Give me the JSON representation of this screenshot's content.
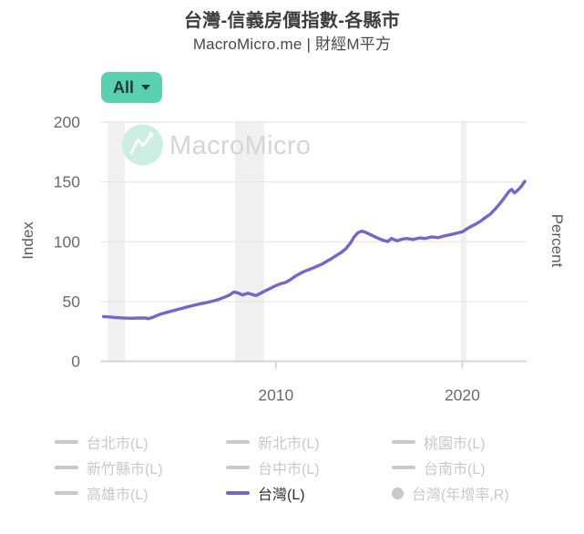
{
  "header": {
    "title": "台灣-信義房價指數-各縣市",
    "subtitle": "MacroMicro.me | 財經M平方"
  },
  "controls": {
    "range_button": {
      "label": "All"
    }
  },
  "watermark": {
    "text": "MacroMicro"
  },
  "chart_data": {
    "type": "line",
    "title": "台灣-信義房價指數-各縣市",
    "ylabel_left": "Index",
    "ylabel_right": "Percent",
    "y_ticks": [
      0,
      50,
      100,
      150,
      200
    ],
    "x_ticks": [
      2010,
      2020
    ],
    "x_domain": [
      2000.6,
      2023.45
    ],
    "ylim": [
      0,
      205
    ],
    "grid": true,
    "recession_bands": [
      [
        2000.97,
        2001.9
      ],
      [
        2007.81,
        2009.37
      ],
      [
        2019.93,
        2020.22
      ]
    ],
    "series": [
      {
        "name": "台灣(L)",
        "color": "#7b64c8",
        "points": [
          [
            2000.75,
            37.4
          ],
          [
            2001.0,
            37.2
          ],
          [
            2001.25,
            36.8
          ],
          [
            2001.5,
            36.5
          ],
          [
            2001.75,
            36.3
          ],
          [
            2002.0,
            36.1
          ],
          [
            2002.25,
            36.0
          ],
          [
            2002.5,
            36.1
          ],
          [
            2002.75,
            36.2
          ],
          [
            2003.0,
            36.3
          ],
          [
            2003.15,
            35.6
          ],
          [
            2003.4,
            36.8
          ],
          [
            2003.6,
            38.2
          ],
          [
            2003.8,
            39.4
          ],
          [
            2004.0,
            40.3
          ],
          [
            2004.25,
            41.4
          ],
          [
            2004.5,
            42.4
          ],
          [
            2004.75,
            43.4
          ],
          [
            2005.0,
            44.4
          ],
          [
            2005.25,
            45.5
          ],
          [
            2005.5,
            46.5
          ],
          [
            2005.75,
            47.4
          ],
          [
            2006.0,
            48.2
          ],
          [
            2006.25,
            49.0
          ],
          [
            2006.5,
            49.9
          ],
          [
            2006.75,
            50.9
          ],
          [
            2007.0,
            52.1
          ],
          [
            2007.25,
            53.6
          ],
          [
            2007.5,
            55.3
          ],
          [
            2007.75,
            58.0
          ],
          [
            2008.0,
            57.0
          ],
          [
            2008.2,
            55.5
          ],
          [
            2008.5,
            57.0
          ],
          [
            2008.75,
            55.8
          ],
          [
            2008.95,
            55.0
          ],
          [
            2009.25,
            57.5
          ],
          [
            2009.5,
            59.5
          ],
          [
            2009.75,
            61.3
          ],
          [
            2010.0,
            63.3
          ],
          [
            2010.25,
            64.8
          ],
          [
            2010.5,
            65.8
          ],
          [
            2010.75,
            68.0
          ],
          [
            2011.0,
            70.8
          ],
          [
            2011.25,
            73.0
          ],
          [
            2011.5,
            75.0
          ],
          [
            2011.75,
            76.5
          ],
          [
            2012.0,
            78.0
          ],
          [
            2012.25,
            79.8
          ],
          [
            2012.5,
            81.5
          ],
          [
            2012.75,
            83.8
          ],
          [
            2013.0,
            86.0
          ],
          [
            2013.25,
            88.5
          ],
          [
            2013.5,
            91.0
          ],
          [
            2013.75,
            94.0
          ],
          [
            2014.0,
            99.0
          ],
          [
            2014.2,
            104.0
          ],
          [
            2014.4,
            107.5
          ],
          [
            2014.6,
            108.8
          ],
          [
            2014.8,
            108.0
          ],
          [
            2015.1,
            105.7
          ],
          [
            2015.4,
            103.5
          ],
          [
            2015.7,
            101.5
          ],
          [
            2016.0,
            100.2
          ],
          [
            2016.2,
            102.7
          ],
          [
            2016.5,
            100.7
          ],
          [
            2016.75,
            102.0
          ],
          [
            2017.0,
            102.7
          ],
          [
            2017.35,
            101.9
          ],
          [
            2017.7,
            103.2
          ],
          [
            2018.0,
            102.7
          ],
          [
            2018.35,
            104.0
          ],
          [
            2018.7,
            103.4
          ],
          [
            2019.0,
            104.7
          ],
          [
            2019.3,
            105.7
          ],
          [
            2019.65,
            107.0
          ],
          [
            2020.0,
            108.3
          ],
          [
            2020.25,
            110.8
          ],
          [
            2020.5,
            113.0
          ],
          [
            2020.75,
            115.0
          ],
          [
            2021.0,
            117.4
          ],
          [
            2021.25,
            120.4
          ],
          [
            2021.5,
            123.0
          ],
          [
            2021.75,
            127.0
          ],
          [
            2022.0,
            131.5
          ],
          [
            2022.25,
            136.5
          ],
          [
            2022.5,
            142.0
          ],
          [
            2022.65,
            143.8
          ],
          [
            2022.8,
            140.8
          ],
          [
            2023.0,
            143.5
          ],
          [
            2023.2,
            147.0
          ],
          [
            2023.35,
            150.5
          ]
        ]
      }
    ]
  },
  "legend": {
    "items": [
      {
        "label": "台北市(L)",
        "swatch": "line",
        "active": false
      },
      {
        "label": "新北市(L)",
        "swatch": "line",
        "active": false
      },
      {
        "label": "桃園市(L)",
        "swatch": "line",
        "active": false
      },
      {
        "label": "新竹縣市(L)",
        "swatch": "line",
        "active": false
      },
      {
        "label": "台中市(L)",
        "swatch": "line",
        "active": false
      },
      {
        "label": "台南市(L)",
        "swatch": "line",
        "active": false
      },
      {
        "label": "高雄市(L)",
        "swatch": "line",
        "active": false
      },
      {
        "label": "台灣(L)",
        "swatch": "line",
        "active": true,
        "color": "#7b64c8"
      },
      {
        "label": "台灣(年增率,R)",
        "swatch": "circle",
        "active": false
      }
    ]
  },
  "colors": {
    "accent_purple": "#7b64c8",
    "button_bg": "#59d1b0",
    "button_text": "#203a3c",
    "recession_band": "#f0f0f0",
    "gridline": "#e8e8e8",
    "axis_line": "#d5d5d5",
    "tick_label": "#6b6b6b",
    "axis_title": "#5a5a5a",
    "legend_inactive": "#c9c9c9",
    "legend_active_text": "#2e2e2e",
    "watermark_circle": "#cdeee3",
    "watermark_text": "#d5d5d5"
  }
}
